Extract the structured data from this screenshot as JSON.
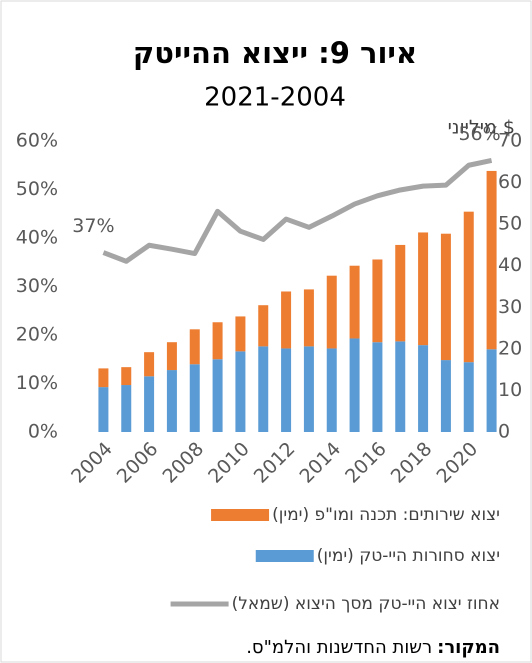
{
  "chart_data": {
    "type": "bar",
    "title": "איור 9: ייצוא ההייטק",
    "subtitle": "2021-2004",
    "y2_label": "מיליוני $",
    "categories": [
      "2004",
      null,
      "2006",
      null,
      "2008",
      null,
      "2010",
      null,
      "2012",
      null,
      "2014",
      null,
      "2016",
      null,
      "2018",
      null,
      "2020",
      null
    ],
    "stacked": true,
    "series": [
      {
        "name": "יצוא שירותים: תכנה ומו\"פ (ימין)",
        "type": "bar",
        "axis": "y2",
        "color": "#ed7d31",
        "values": [
          4.5,
          4.3,
          5.8,
          6.7,
          8.4,
          8.9,
          8.4,
          9.9,
          13.7,
          13.7,
          17.5,
          17.5,
          19.9,
          23.2,
          27.1,
          30.4,
          36.2,
          42.9
        ]
      },
      {
        "name": "יצוא סחורות היי-טק (ימין)",
        "type": "bar",
        "axis": "y2",
        "color": "#5b9bd5",
        "values": [
          10.8,
          11.3,
          13.4,
          14.9,
          16.3,
          17.5,
          19.4,
          20.6,
          20.1,
          20.6,
          20.1,
          22.5,
          21.6,
          21.8,
          20.9,
          17.3,
          16.8,
          19.9
        ]
      },
      {
        "name": "אחוז יצוא היי-טק מסך היצוא (שמאל)",
        "type": "line",
        "axis": "y",
        "color": "#a5a5a5",
        "values": [
          37,
          35.2,
          38.5,
          37.7,
          36.8,
          45.5,
          41.4,
          39.7,
          43.9,
          42.2,
          44.5,
          47,
          48.7,
          49.9,
          50.7,
          50.9,
          55,
          56
        ],
        "value_labels": [
          "37%",
          null,
          null,
          null,
          null,
          null,
          null,
          null,
          null,
          null,
          null,
          null,
          null,
          null,
          null,
          null,
          null,
          "56%"
        ]
      }
    ],
    "ylim": [
      0,
      60
    ],
    "yticks": [
      {
        "value": 0,
        "label": "0%"
      },
      {
        "value": 10,
        "label": "10%"
      },
      {
        "value": 20,
        "label": "20%"
      },
      {
        "value": 30,
        "label": "30%"
      },
      {
        "value": 40,
        "label": "40%"
      },
      {
        "value": 50,
        "label": "50%"
      },
      {
        "value": 60,
        "label": "60%"
      }
    ],
    "y2lim": [
      0,
      70
    ],
    "y2ticks": [
      0,
      10,
      20,
      30,
      40,
      50,
      60,
      70
    ],
    "grid": false,
    "source": {
      "label": "המקור:",
      "text": "רשות החדשנות והלמ\"ס."
    }
  }
}
